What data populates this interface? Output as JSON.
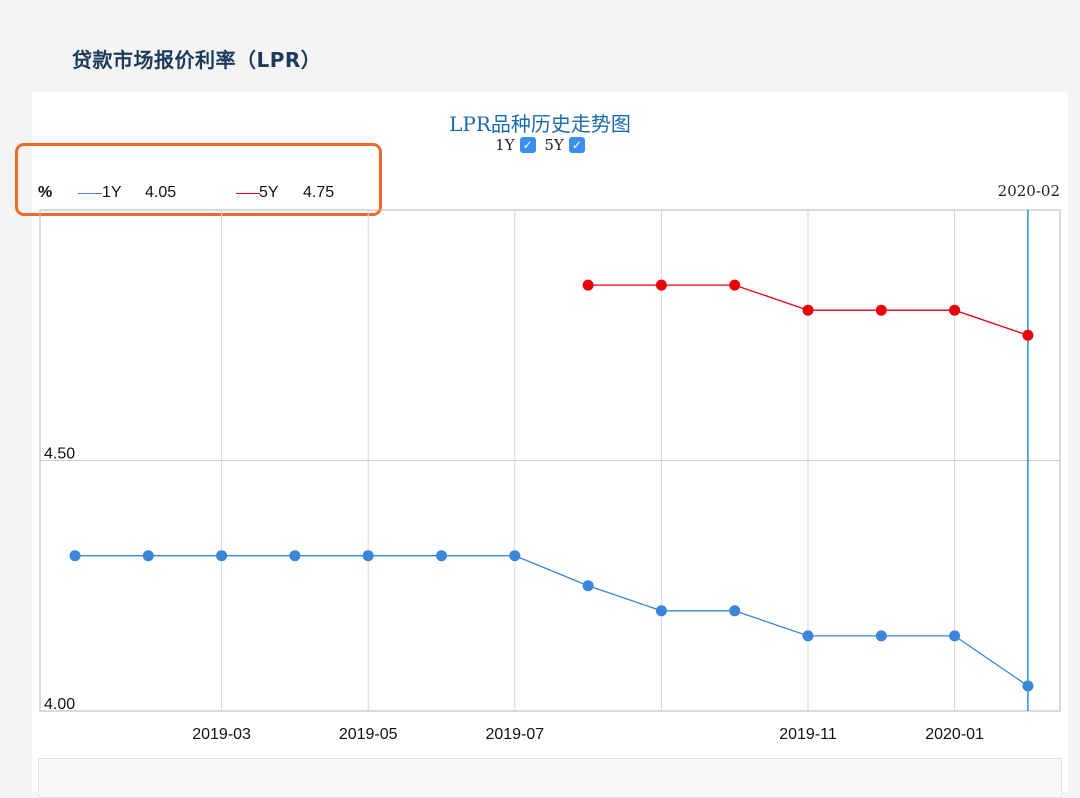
{
  "page": {
    "title": "贷款市场报价利率（LPR）"
  },
  "legend": {
    "unit": "%",
    "items": [
      {
        "name": "1Y",
        "value": "4.05",
        "color": "#3b86d8"
      },
      {
        "name": "5Y",
        "value": "4.75",
        "color": "#e8000b"
      }
    ],
    "latest_date": "2020-02"
  },
  "toggles": [
    {
      "label": "1Y",
      "checked": true,
      "check_glyph": "✓"
    },
    {
      "label": "5Y",
      "checked": true,
      "check_glyph": "✓"
    }
  ],
  "chart_data": {
    "type": "line",
    "title": "LPR品种历史走势图",
    "xlabel": "",
    "ylabel": "",
    "x": [
      "2019-01",
      "2019-02",
      "2019-03",
      "2019-04",
      "2019-05",
      "2019-06",
      "2019-07",
      "2019-08",
      "2019-09",
      "2019-10",
      "2019-11",
      "2019-12",
      "2020-01",
      "2020-02"
    ],
    "x_tick_labels": [
      "2019-03",
      "2019-05",
      "2019-07",
      "2019-11",
      "2020-01"
    ],
    "y_tick_labels": [
      "4.50",
      "4.00"
    ],
    "ylim": [
      4.0,
      5.0
    ],
    "grid": true,
    "crosshair_at": "2020-02",
    "series": [
      {
        "name": "1Y",
        "color": "#3b86d8",
        "values": [
          4.31,
          4.31,
          4.31,
          4.31,
          4.31,
          4.31,
          4.31,
          4.25,
          4.2,
          4.2,
          4.15,
          4.15,
          4.15,
          4.05
        ]
      },
      {
        "name": "5Y",
        "color": "#e8000b",
        "values": [
          null,
          null,
          null,
          null,
          null,
          null,
          null,
          4.85,
          4.85,
          4.85,
          4.8,
          4.8,
          4.8,
          4.75
        ]
      }
    ]
  }
}
